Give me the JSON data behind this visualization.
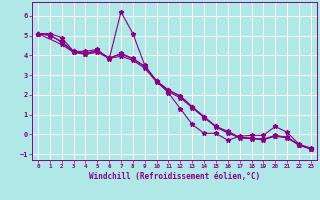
{
  "xlabel": "Windchill (Refroidissement éolien,°C)",
  "background_color": "#b0e8e8",
  "line_color": "#880088",
  "grid_color": "#ffffff",
  "xlim": [
    -0.5,
    23.5
  ],
  "ylim": [
    -1.3,
    6.7
  ],
  "xticks": [
    0,
    1,
    2,
    3,
    4,
    5,
    6,
    7,
    8,
    9,
    10,
    11,
    12,
    13,
    14,
    15,
    16,
    17,
    18,
    19,
    20,
    21,
    22,
    23
  ],
  "yticks": [
    -1,
    0,
    1,
    2,
    3,
    4,
    5,
    6
  ],
  "series1_x": [
    0,
    1,
    2,
    3,
    4,
    5,
    6,
    7,
    8,
    9,
    10,
    11,
    12,
    13,
    14,
    15,
    16,
    17,
    18,
    19,
    20,
    21,
    22,
    23
  ],
  "series1_y": [
    5.1,
    5.1,
    4.9,
    4.2,
    4.2,
    4.3,
    3.8,
    6.2,
    5.1,
    3.5,
    2.7,
    2.1,
    1.3,
    0.5,
    0.05,
    0.05,
    -0.3,
    -0.1,
    -0.05,
    -0.05,
    0.4,
    0.1,
    -0.5,
    -0.7
  ],
  "series2_x": [
    0,
    1,
    2,
    3,
    4,
    5,
    6,
    7,
    8,
    9,
    10,
    11,
    12,
    13,
    14,
    15,
    16,
    17,
    18,
    19,
    20,
    21,
    22,
    23
  ],
  "series2_y": [
    5.1,
    5.0,
    4.7,
    4.2,
    4.1,
    4.25,
    3.85,
    4.1,
    3.85,
    3.45,
    2.7,
    2.25,
    1.95,
    1.4,
    0.9,
    0.4,
    0.1,
    -0.15,
    -0.2,
    -0.25,
    -0.05,
    -0.15,
    -0.52,
    -0.72
  ],
  "series3_x": [
    0,
    1,
    2,
    3,
    4,
    5,
    6,
    7,
    8,
    9,
    10,
    11,
    12,
    13,
    14,
    15,
    16,
    17,
    18,
    19,
    20,
    21,
    22,
    23
  ],
  "series3_y": [
    5.1,
    5.05,
    4.65,
    4.18,
    4.08,
    4.22,
    3.88,
    4.05,
    3.82,
    3.42,
    2.68,
    2.22,
    1.92,
    1.37,
    0.87,
    0.37,
    0.07,
    -0.18,
    -0.22,
    -0.27,
    -0.08,
    -0.18,
    -0.54,
    -0.74
  ],
  "series4_x": [
    0,
    2,
    3,
    4,
    5,
    6,
    7,
    8,
    9,
    10,
    11,
    12,
    13,
    14,
    15,
    16,
    17,
    18,
    19,
    20,
    21,
    22,
    23
  ],
  "series4_y": [
    5.1,
    4.55,
    4.15,
    4.05,
    4.15,
    3.85,
    3.95,
    3.75,
    3.35,
    2.65,
    2.15,
    1.85,
    1.35,
    0.85,
    0.4,
    0.15,
    -0.15,
    -0.2,
    -0.25,
    -0.1,
    -0.15,
    -0.55,
    -0.75
  ]
}
